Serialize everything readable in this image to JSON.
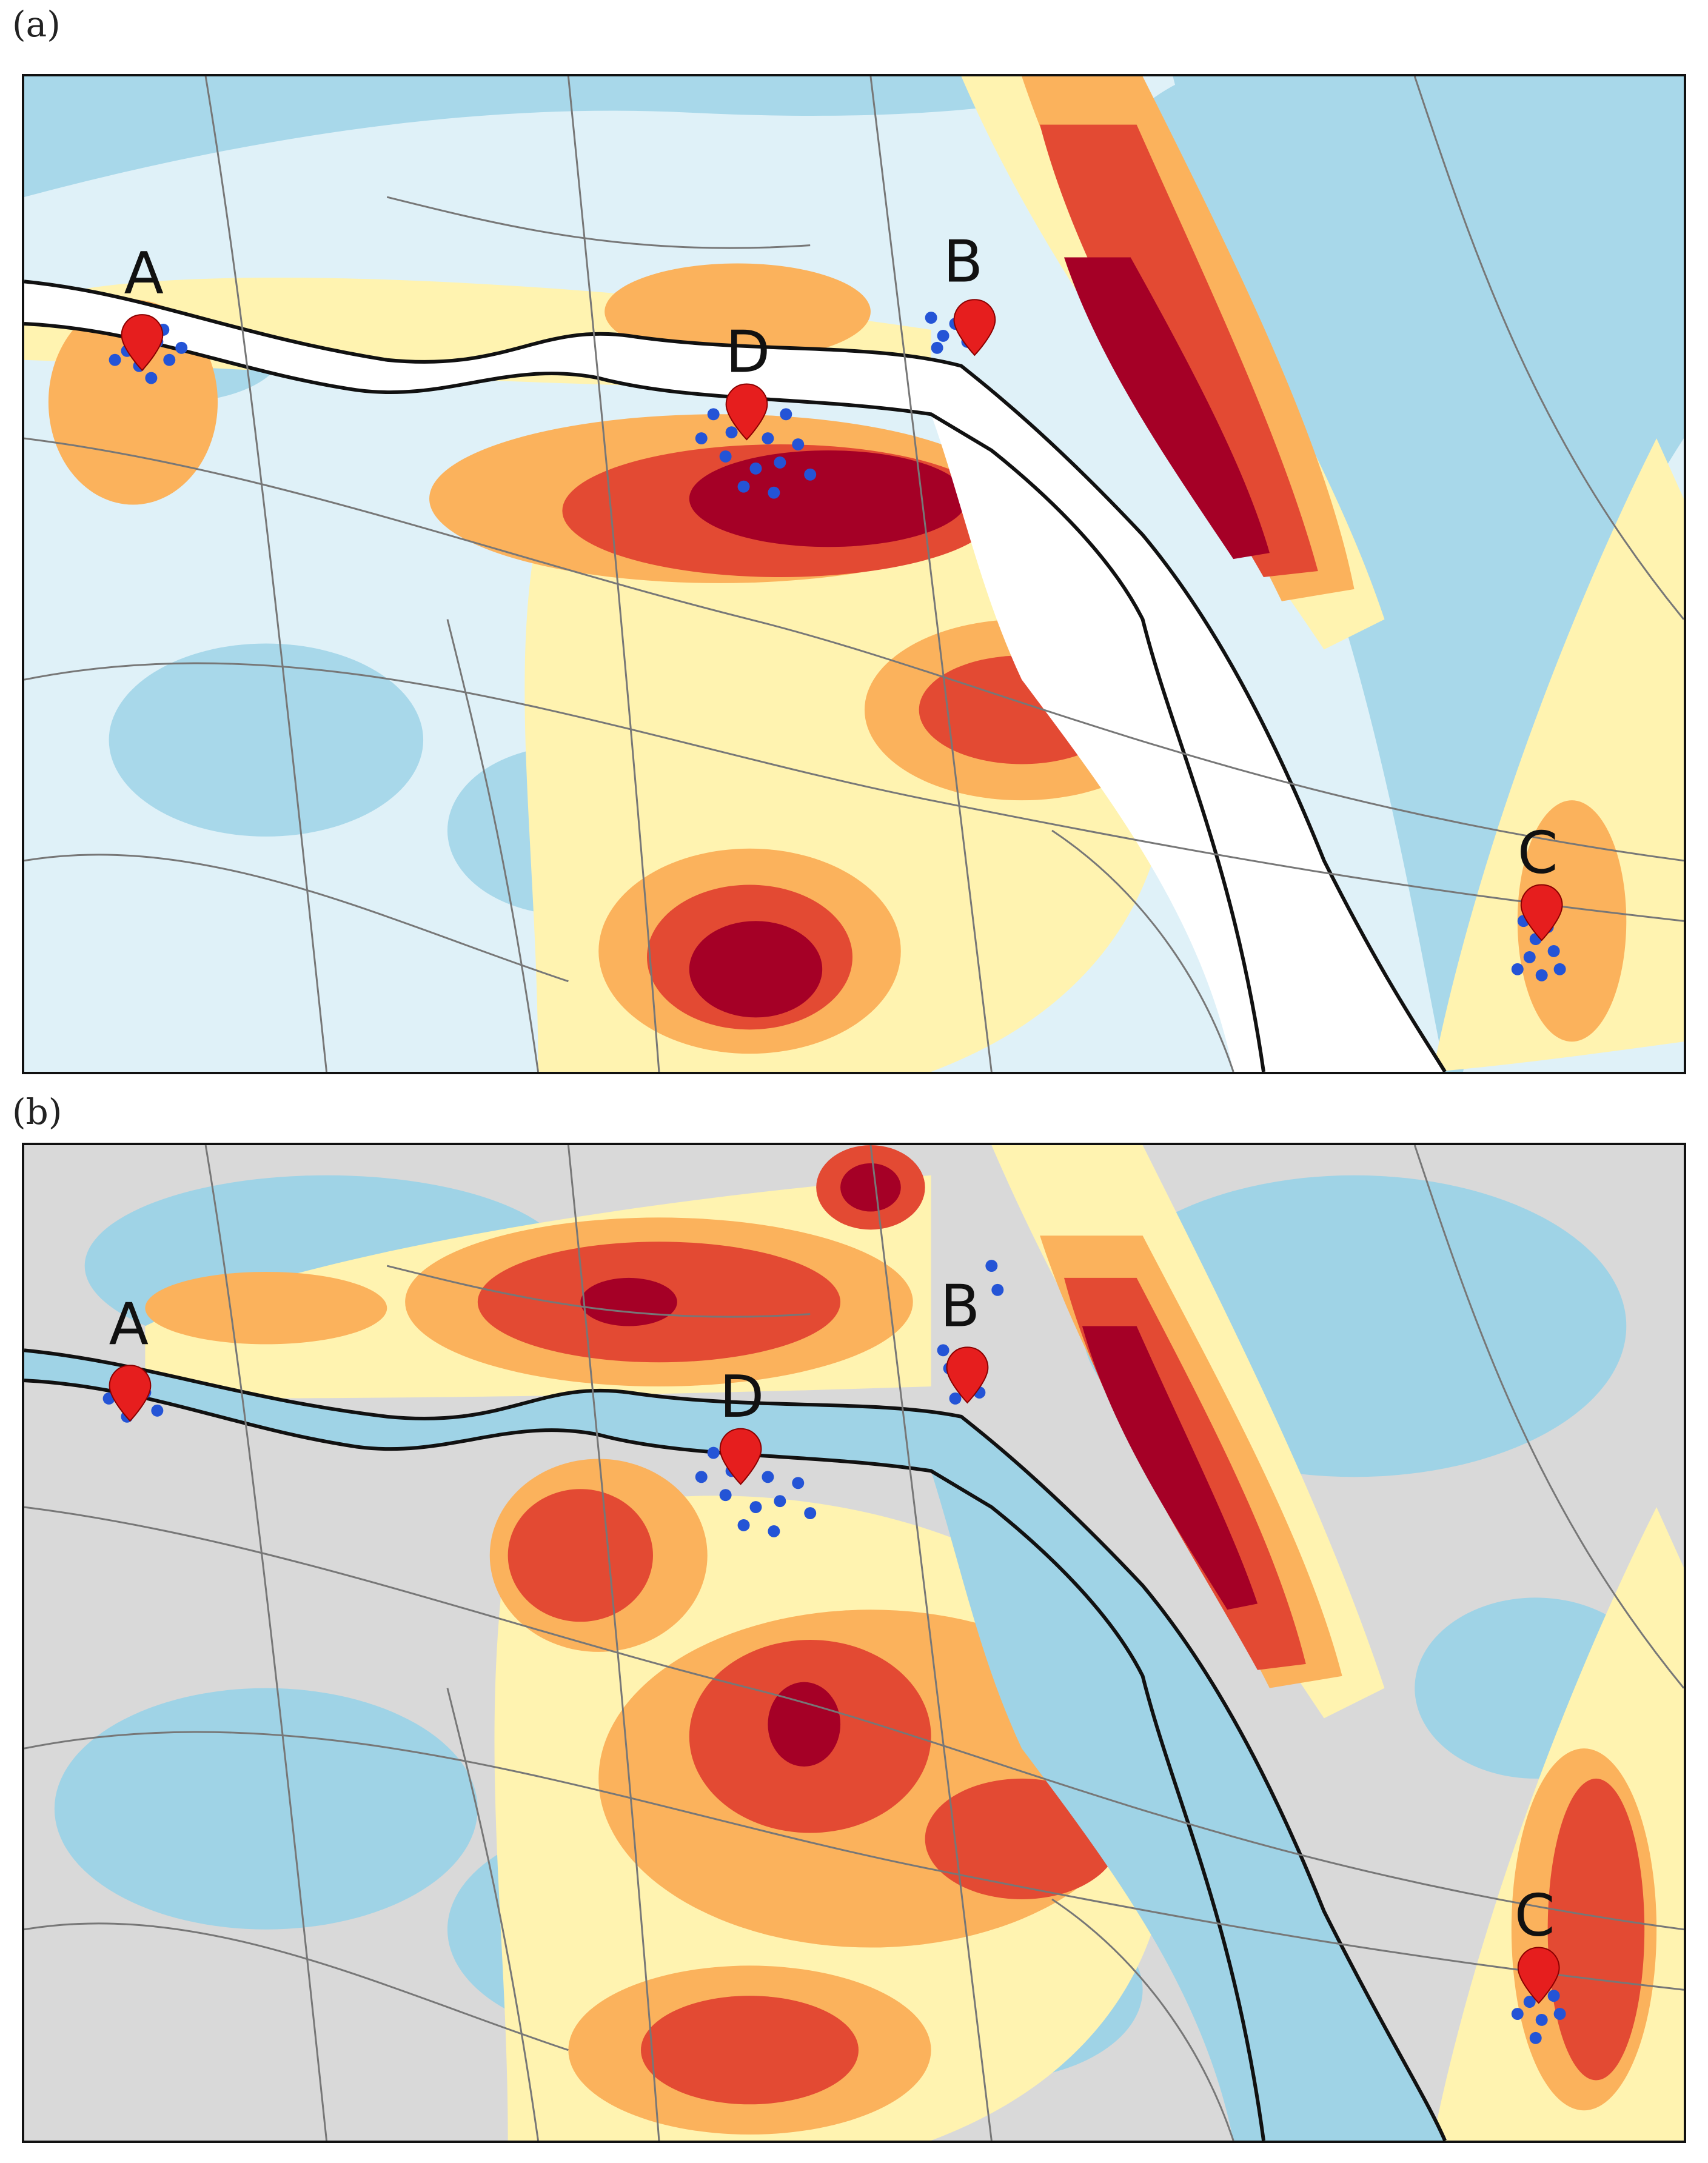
{
  "panels": [
    {
      "label": "(a)",
      "palette": {
        "water": "#a8d8ea",
        "land": "#dff1f8",
        "low": "#fff3b0",
        "mid": "#fbb25c",
        "high": "#e34a33",
        "peak": "#a50026",
        "river": "#ffffff",
        "roads": "#777777",
        "points": "#2454d6",
        "pin": "#e61e1e"
      },
      "markers": [
        {
          "letter": "A"
        },
        {
          "letter": "B"
        },
        {
          "letter": "C"
        },
        {
          "letter": "D"
        }
      ]
    },
    {
      "label": "(b)",
      "palette": {
        "water": "#9fd3e6",
        "land": "#d9d9d9",
        "low": "#fff3b0",
        "mid": "#fbb25c",
        "high": "#e34a33",
        "peak": "#a50026",
        "river": "#9fd3e6",
        "roads": "#777777",
        "points": "#2454d6",
        "pin": "#e61e1e"
      },
      "markers": [
        {
          "letter": "A"
        },
        {
          "letter": "B"
        },
        {
          "letter": "C"
        },
        {
          "letter": "D"
        }
      ]
    }
  ]
}
